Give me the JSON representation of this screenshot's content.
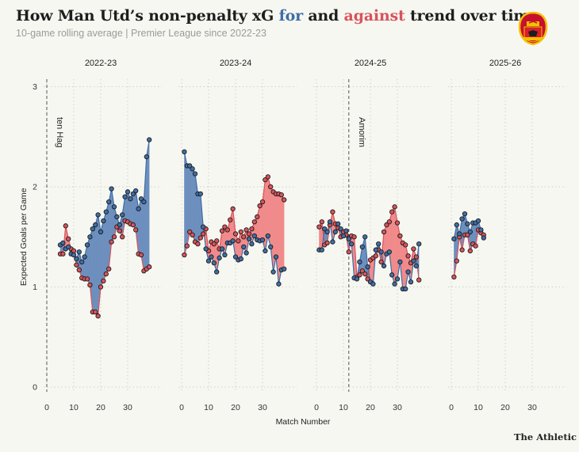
{
  "header": {
    "title_pre": "How Man Utd’s non-penalty xG ",
    "title_for": "for",
    "title_mid": " and ",
    "title_against": "against",
    "title_post": " trend over time",
    "subtitle": "10-game rolling average | Premier League since 2022-23"
  },
  "credit": "The Athletic",
  "logo": {
    "icon": "man-utd-crest-icon"
  },
  "colors": {
    "for": "#3f6ea5",
    "against": "#d9535a",
    "for_fill": "#6d8fbe",
    "against_fill": "#f08a8b"
  },
  "chart_data": {
    "type": "line",
    "ylabel": "Expected Goals per Game",
    "xlabel": "Match Number",
    "ylim": [
      0,
      3
    ],
    "yticks": [
      0,
      1,
      2,
      3
    ],
    "xticks": [
      0,
      10,
      20,
      30
    ],
    "grid": true,
    "annotations": [
      {
        "panel": 0,
        "x": 0,
        "label": "ten Hag"
      },
      {
        "panel": 2,
        "x": 12,
        "label": "Amorim"
      }
    ],
    "panels": [
      {
        "season": "2022-23",
        "series": [
          {
            "name": "for",
            "x": [
              5,
              6,
              7,
              8,
              9,
              10,
              11,
              12,
              13,
              14,
              15,
              16,
              17,
              18,
              19,
              20,
              21,
              22,
              23,
              24,
              25,
              26,
              27,
              28,
              29,
              30,
              31,
              32,
              33,
              34,
              35,
              36,
              37,
              38
            ],
            "y": [
              1.42,
              1.44,
              1.38,
              1.4,
              1.33,
              1.32,
              1.28,
              1.35,
              1.25,
              1.3,
              1.42,
              1.5,
              1.58,
              1.62,
              1.72,
              1.55,
              1.66,
              1.75,
              1.85,
              1.98,
              1.8,
              1.7,
              1.62,
              1.72,
              1.9,
              1.95,
              1.88,
              1.93,
              1.96,
              1.78,
              1.88,
              1.85,
              2.3,
              2.47
            ]
          },
          {
            "name": "against",
            "x": [
              5,
              6,
              7,
              8,
              9,
              10,
              11,
              12,
              13,
              14,
              15,
              16,
              17,
              18,
              19,
              20,
              21,
              22,
              23,
              24,
              25,
              26,
              27,
              28,
              29,
              30,
              31,
              32,
              33,
              34,
              35,
              36,
              37,
              38
            ],
            "y": [
              1.33,
              1.33,
              1.61,
              1.48,
              1.38,
              1.36,
              1.22,
              1.17,
              1.09,
              1.08,
              1.08,
              1.02,
              0.75,
              0.75,
              0.71,
              1.0,
              1.06,
              1.13,
              1.18,
              1.45,
              1.5,
              1.6,
              1.56,
              1.5,
              1.66,
              1.65,
              1.63,
              1.62,
              1.57,
              1.33,
              1.32,
              1.16,
              1.18,
              1.2
            ]
          }
        ]
      },
      {
        "season": "2023-24",
        "series": [
          {
            "name": "for",
            "x": [
              1,
              2,
              3,
              4,
              5,
              6,
              7,
              8,
              9,
              10,
              11,
              12,
              13,
              14,
              15,
              16,
              17,
              18,
              19,
              20,
              21,
              22,
              23,
              24,
              25,
              26,
              27,
              28,
              29,
              30,
              31,
              32,
              33,
              34,
              35,
              36,
              37,
              38
            ],
            "y": [
              2.35,
              2.21,
              2.21,
              2.18,
              2.13,
              1.93,
              1.93,
              1.6,
              1.38,
              1.26,
              1.3,
              1.24,
              1.15,
              1.29,
              1.38,
              1.32,
              1.44,
              1.44,
              1.46,
              1.3,
              1.27,
              1.28,
              1.4,
              1.34,
              1.48,
              1.43,
              1.51,
              1.47,
              1.46,
              1.47,
              1.36,
              1.51,
              1.4,
              1.15,
              1.3,
              1.03,
              1.17,
              1.18
            ]
          },
          {
            "name": "against",
            "x": [
              1,
              2,
              3,
              4,
              5,
              6,
              7,
              8,
              9,
              10,
              11,
              12,
              13,
              14,
              15,
              16,
              17,
              18,
              19,
              20,
              21,
              22,
              23,
              24,
              25,
              26,
              27,
              28,
              29,
              30,
              31,
              32,
              33,
              34,
              35,
              36,
              37,
              38
            ],
            "y": [
              1.32,
              1.41,
              1.55,
              1.52,
              1.45,
              1.43,
              1.49,
              1.53,
              1.58,
              1.36,
              1.45,
              1.43,
              1.46,
              1.38,
              1.56,
              1.6,
              1.57,
              1.67,
              1.78,
              1.53,
              1.46,
              1.55,
              1.5,
              1.57,
              1.53,
              1.58,
              1.65,
              1.7,
              1.81,
              1.85,
              2.07,
              2.1,
              2.0,
              1.95,
              1.93,
              1.93,
              1.92,
              1.87
            ]
          }
        ]
      },
      {
        "season": "2024-25",
        "series": [
          {
            "name": "for",
            "x": [
              1,
              2,
              3,
              4,
              5,
              6,
              7,
              8,
              9,
              10,
              11,
              12,
              13,
              14,
              15,
              16,
              17,
              18,
              19,
              20,
              21,
              22,
              23,
              24,
              25,
              26,
              27,
              28,
              29,
              30,
              31,
              32,
              33,
              34,
              35,
              36,
              37,
              38
            ],
            "y": [
              1.37,
              1.37,
              1.58,
              1.55,
              1.65,
              1.45,
              1.55,
              1.63,
              1.58,
              1.51,
              1.56,
              1.48,
              1.43,
              1.09,
              1.08,
              1.25,
              1.4,
              1.5,
              1.2,
              1.05,
              1.03,
              1.37,
              1.43,
              1.35,
              1.21,
              1.33,
              1.35,
              1.12,
              1.03,
              1.08,
              1.25,
              0.98,
              0.98,
              1.15,
              1.05,
              1.26,
              1.21,
              1.43
            ]
          },
          {
            "name": "against",
            "x": [
              1,
              2,
              3,
              4,
              5,
              6,
              7,
              8,
              9,
              10,
              11,
              12,
              13,
              14,
              15,
              16,
              17,
              18,
              19,
              20,
              21,
              22,
              23,
              24,
              25,
              26,
              27,
              28,
              29,
              30,
              31,
              32,
              33,
              34,
              35,
              36,
              37,
              38
            ],
            "y": [
              1.6,
              1.65,
              1.42,
              1.44,
              1.62,
              1.75,
              1.63,
              1.59,
              1.5,
              1.55,
              1.52,
              1.35,
              1.51,
              1.5,
              1.1,
              1.12,
              1.16,
              1.13,
              1.08,
              1.27,
              1.29,
              1.31,
              1.37,
              1.25,
              1.55,
              1.62,
              1.65,
              1.75,
              1.8,
              1.64,
              1.51,
              1.44,
              1.42,
              1.31,
              1.24,
              1.38,
              1.3,
              1.07
            ]
          }
        ]
      },
      {
        "season": "2025-26",
        "series": [
          {
            "name": "for",
            "x": [
              1,
              2,
              3,
              4,
              5,
              6,
              7,
              8,
              9,
              10,
              11,
              12
            ],
            "y": [
              1.48,
              1.62,
              1.53,
              1.68,
              1.73,
              1.63,
              1.55,
              1.64,
              1.64,
              1.66,
              1.57,
              1.49
            ]
          },
          {
            "name": "against",
            "x": [
              1,
              2,
              3,
              4,
              5,
              6,
              7,
              8,
              9,
              10,
              11,
              12
            ],
            "y": [
              1.1,
              1.26,
              1.5,
              1.37,
              1.52,
              1.52,
              1.36,
              1.43,
              1.41,
              1.57,
              1.54,
              1.52
            ]
          }
        ]
      }
    ]
  }
}
